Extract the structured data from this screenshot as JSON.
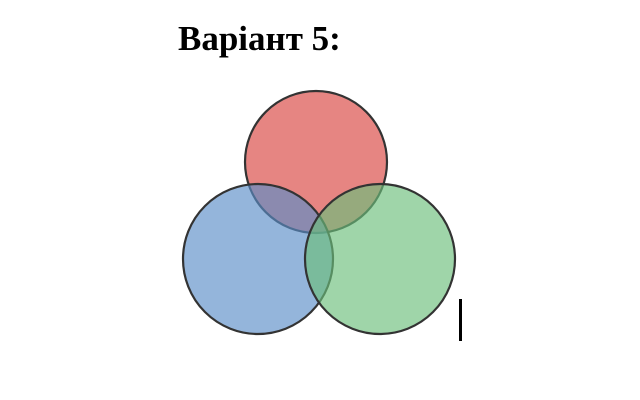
{
  "document": {
    "title": "Варіант 5:"
  },
  "diagram": {
    "circles": [
      {
        "name": "red-circle",
        "fill": "#d9433f",
        "opacity": 0.65
      },
      {
        "name": "blue-circle",
        "fill": "#5b8dc8",
        "opacity": 0.65
      },
      {
        "name": "green-circle",
        "fill": "#6cbf7b",
        "opacity": 0.65
      }
    ],
    "outline_color": "#333333"
  },
  "cursor": {
    "color": "#000000"
  }
}
